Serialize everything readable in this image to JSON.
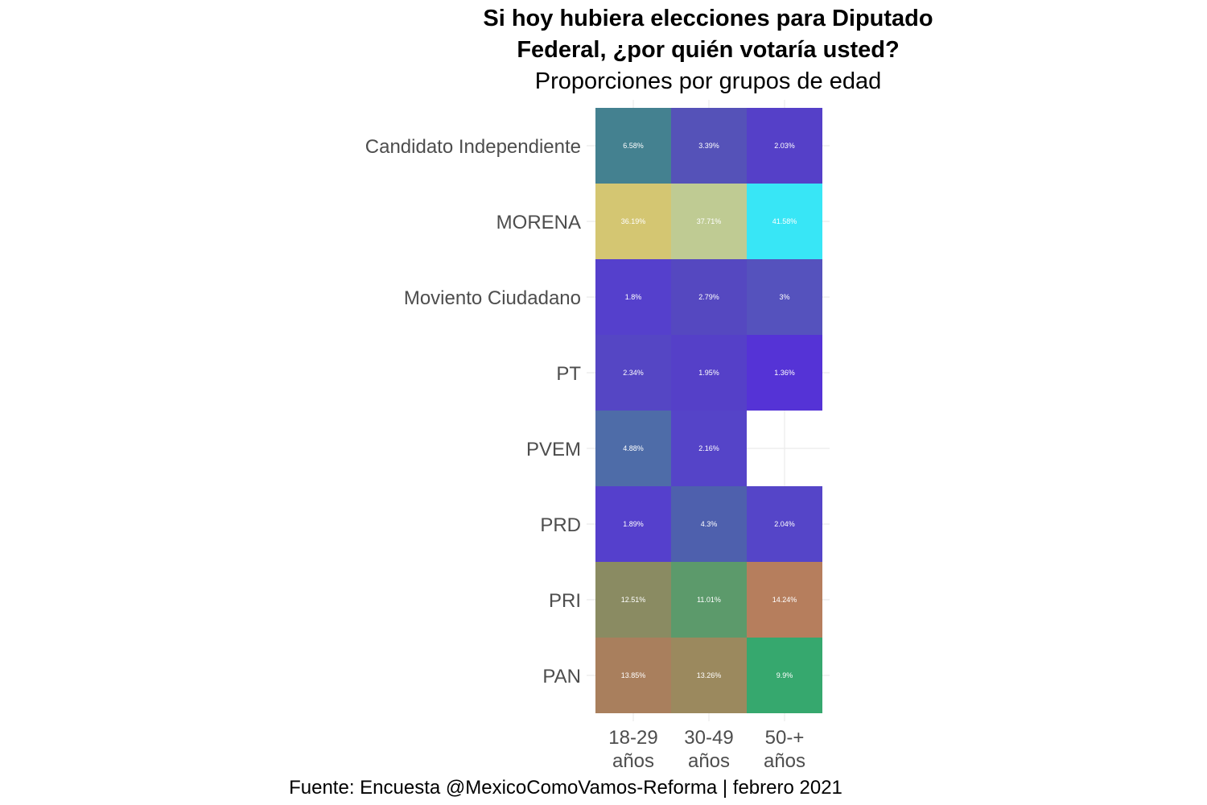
{
  "chart_data": {
    "type": "heatmap",
    "title_lines": [
      "Si hoy hubiera elecciones para Diputado",
      "Federal, ¿por quién votaría usted?"
    ],
    "subtitle": "Proporciones por grupos de edad",
    "caption": "Fuente: Encuesta @MexicoComoVamos-Reforma | febrero 2021",
    "xlabel": "",
    "ylabel": "",
    "x_categories": [
      [
        "18-29",
        "años"
      ],
      [
        "30-49",
        "años"
      ],
      [
        "50-+",
        "años"
      ]
    ],
    "y_categories": [
      "Candidato Independiente",
      "MORENA",
      "Moviento Ciudadano",
      "PT",
      "PVEM",
      "PRD",
      "PRI",
      "PAN"
    ],
    "cells": [
      {
        "party": "Candidato Independiente",
        "age": 0,
        "value": 6.58,
        "label": "6.58%",
        "color": "#448190"
      },
      {
        "party": "Candidato Independiente",
        "age": 1,
        "value": 3.39,
        "label": "3.39%",
        "color": "#5552b8"
      },
      {
        "party": "Candidato Independiente",
        "age": 2,
        "value": 2.03,
        "label": "2.03%",
        "color": "#5540c8"
      },
      {
        "party": "MORENA",
        "age": 0,
        "value": 36.19,
        "label": "36.19%",
        "color": "#d4c672"
      },
      {
        "party": "MORENA",
        "age": 1,
        "value": 37.71,
        "label": "37.71%",
        "color": "#bfcb93"
      },
      {
        "party": "MORENA",
        "age": 2,
        "value": 41.58,
        "label": "41.58%",
        "color": "#38e6f6"
      },
      {
        "party": "Moviento Ciudadano",
        "age": 0,
        "value": 1.8,
        "label": "1.8%",
        "color": "#5540cc"
      },
      {
        "party": "Moviento Ciudadano",
        "age": 1,
        "value": 2.79,
        "label": "2.79%",
        "color": "#5548c0"
      },
      {
        "party": "Moviento Ciudadano",
        "age": 2,
        "value": 3.0,
        "label": "3%",
        "color": "#5552bd"
      },
      {
        "party": "PT",
        "age": 0,
        "value": 2.34,
        "label": "2.34%",
        "color": "#5546c4"
      },
      {
        "party": "PT",
        "age": 1,
        "value": 1.95,
        "label": "1.95%",
        "color": "#5540c8"
      },
      {
        "party": "PT",
        "age": 2,
        "value": 1.36,
        "label": "1.36%",
        "color": "#5533d6"
      },
      {
        "party": "PVEM",
        "age": 0,
        "value": 4.88,
        "label": "4.88%",
        "color": "#4e6ca8"
      },
      {
        "party": "PVEM",
        "age": 1,
        "value": 2.16,
        "label": "2.16%",
        "color": "#5544c8"
      },
      {
        "party": "PRD",
        "age": 0,
        "value": 1.89,
        "label": "1.89%",
        "color": "#5540cc"
      },
      {
        "party": "PRD",
        "age": 1,
        "value": 4.3,
        "label": "4.3%",
        "color": "#4e60ad"
      },
      {
        "party": "PRD",
        "age": 2,
        "value": 2.04,
        "label": "2.04%",
        "color": "#5545c8"
      },
      {
        "party": "PRI",
        "age": 0,
        "value": 12.51,
        "label": "12.51%",
        "color": "#8a8b62"
      },
      {
        "party": "PRI",
        "age": 1,
        "value": 11.01,
        "label": "11.01%",
        "color": "#5c9a6b"
      },
      {
        "party": "PRI",
        "age": 2,
        "value": 14.24,
        "label": "14.24%",
        "color": "#b67e5d"
      },
      {
        "party": "PAN",
        "age": 0,
        "value": 13.85,
        "label": "13.85%",
        "color": "#a97f5d"
      },
      {
        "party": "PAN",
        "age": 1,
        "value": 13.26,
        "label": "13.26%",
        "color": "#9b895e"
      },
      {
        "party": "PAN",
        "age": 2,
        "value": 9.9,
        "label": "9.9%",
        "color": "#36a86e"
      }
    ],
    "grid": true,
    "legend": "none"
  }
}
